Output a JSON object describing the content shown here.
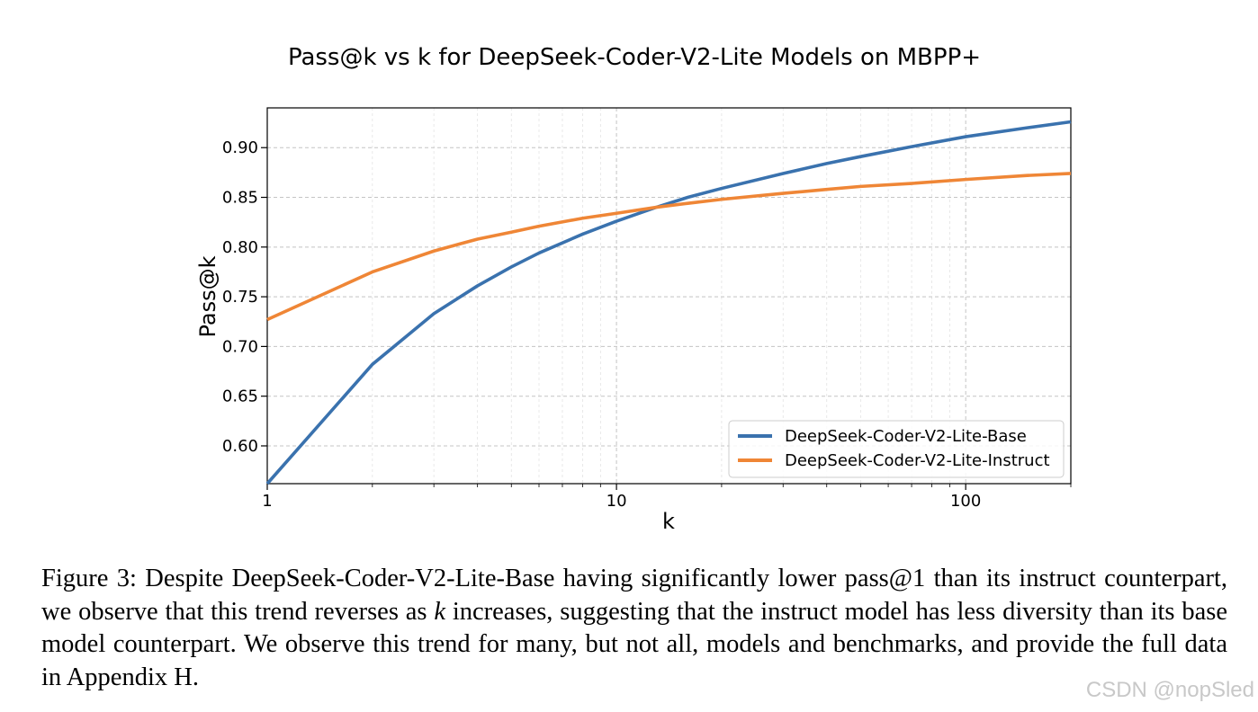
{
  "chart_data": {
    "type": "line",
    "title": "Pass@k vs k for DeepSeek-Coder-V2-Lite Models on MBPP+",
    "xlabel": "k",
    "ylabel": "Pass@k",
    "xscale": "log",
    "xlim": [
      1,
      200
    ],
    "ylim": [
      0.562,
      0.94
    ],
    "xticks": [
      1,
      10,
      100
    ],
    "xtick_labels": [
      "1",
      "10",
      "100"
    ],
    "yticks": [
      0.6,
      0.65,
      0.7,
      0.75,
      0.8,
      0.85,
      0.9
    ],
    "ytick_labels": [
      "0.60",
      "0.65",
      "0.70",
      "0.75",
      "0.80",
      "0.85",
      "0.90"
    ],
    "grid": true,
    "legend_position": "lower-right",
    "x": [
      1,
      2,
      3,
      4,
      5,
      6,
      8,
      10,
      13,
      16,
      20,
      30,
      40,
      50,
      70,
      100,
      150,
      200
    ],
    "series": [
      {
        "name": "DeepSeek-Coder-V2-Lite-Base",
        "color": "#3a72ae",
        "values": [
          0.562,
          0.682,
          0.733,
          0.761,
          0.78,
          0.794,
          0.813,
          0.826,
          0.84,
          0.85,
          0.859,
          0.874,
          0.884,
          0.891,
          0.901,
          0.911,
          0.92,
          0.926
        ]
      },
      {
        "name": "DeepSeek-Coder-V2-Lite-Instruct",
        "color": "#ef8636",
        "values": [
          0.727,
          0.775,
          0.796,
          0.808,
          0.815,
          0.821,
          0.829,
          0.834,
          0.84,
          0.844,
          0.848,
          0.854,
          0.858,
          0.861,
          0.864,
          0.868,
          0.872,
          0.874
        ]
      }
    ]
  },
  "caption": {
    "label": "Figure 3:",
    "text_before_k": "Despite DeepSeek-Coder-V2-Lite-Base having significantly lower pass@1 than its instruct counterpart, we observe that this trend reverses as",
    "k": "k",
    "text_after_k": "increases, suggesting that the instruct model has less diversity than its base model counterpart. We observe this trend for many, but not all, models and benchmarks, and provide the full data in Appendix H."
  },
  "watermark": "CSDN @nopSled"
}
